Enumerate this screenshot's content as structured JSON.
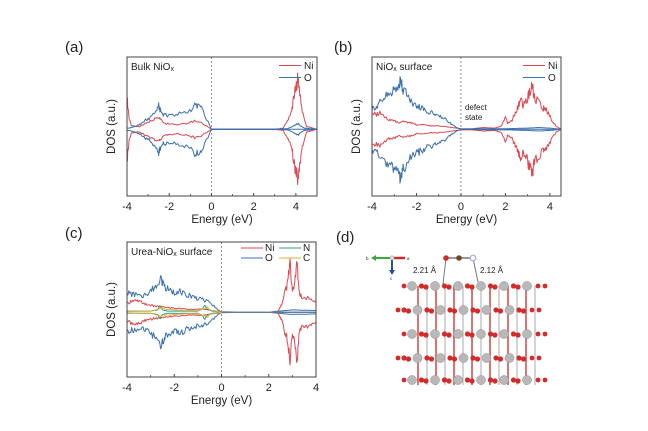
{
  "chart_data": [
    {
      "id": "a",
      "type": "line",
      "panel_label": "(a)",
      "inset_title": "Bulk NiOx",
      "inset_title_main": "Bulk NiO",
      "inset_title_sub": "x",
      "xlabel": "Energy (eV)",
      "ylabel": "DOS (a.u.)",
      "xlim": [
        -4,
        5
      ],
      "xticks": [
        -4,
        -2,
        0,
        2,
        4
      ],
      "ylim": [
        -1,
        1
      ],
      "fermi_line": 0,
      "grid": false,
      "legend": "top-right",
      "series": [
        {
          "name": "Ni",
          "color": "#d9494f",
          "x": [
            -4,
            -3.9,
            -3.8,
            -3.6,
            -3.4,
            -3.2,
            -3.0,
            -2.8,
            -2.6,
            -2.5,
            -2.4,
            -2.2,
            -2.0,
            -1.6,
            -1.2,
            -0.8,
            -0.4,
            0,
            0.5,
            1,
            2,
            3,
            3.4,
            3.6,
            3.8,
            3.9,
            4.0,
            4.1,
            4.2,
            4.3,
            4.5,
            5
          ],
          "y": [
            0.55,
            0.2,
            0.06,
            0.05,
            0.05,
            0.08,
            0.12,
            0.16,
            0.2,
            0.22,
            0.18,
            0.1,
            0.1,
            0.08,
            0.1,
            0.14,
            0.1,
            0,
            0,
            0,
            0,
            0,
            0.02,
            0.15,
            0.32,
            0.55,
            0.7,
            0.9,
            0.6,
            0.3,
            0.05,
            0
          ]
        },
        {
          "name": "O",
          "color": "#3c6fb0",
          "x": [
            -4,
            -3.9,
            -3.8,
            -3.6,
            -3.4,
            -3.2,
            -3.0,
            -2.8,
            -2.6,
            -2.5,
            -2.4,
            -2.2,
            -2.0,
            -1.6,
            -1.2,
            -0.8,
            -0.6,
            -0.4,
            0,
            1,
            2,
            3,
            3.6,
            3.8,
            4.0,
            4.1,
            4.2,
            4.4,
            5
          ],
          "y": [
            0.02,
            0.02,
            0.03,
            0.05,
            0.08,
            0.14,
            0.18,
            0.22,
            0.34,
            0.4,
            0.3,
            0.24,
            0.24,
            0.26,
            0.28,
            0.4,
            0.42,
            0.3,
            0,
            0,
            0,
            0,
            0.01,
            0.04,
            0.08,
            0.1,
            0.06,
            0.02,
            0
          ]
        }
      ]
    },
    {
      "id": "b",
      "type": "line",
      "panel_label": "(b)",
      "inset_title_main": "NiO",
      "inset_title_sub": "x",
      "inset_title_rest": " surface",
      "annotation": [
        "defect",
        "state"
      ],
      "xlabel": "Energy (eV)",
      "ylabel": "DOS (a.u.)",
      "xlim": [
        -4,
        4.5
      ],
      "xticks": [
        -4,
        -2,
        0,
        2,
        4
      ],
      "ylim": [
        -1,
        1
      ],
      "fermi_line": 0,
      "grid": false,
      "legend": "top-right",
      "series": [
        {
          "name": "Ni",
          "color": "#d9494f",
          "x": [
            -4,
            -3.8,
            -3.6,
            -3.4,
            -3.2,
            -3.0,
            -2.8,
            -2.6,
            -2.4,
            -2.2,
            -2.0,
            -1.6,
            -1.2,
            -0.8,
            -0.4,
            0,
            0.5,
            1,
            1.5,
            1.8,
            1.9,
            2.0,
            2.1,
            2.3,
            2.4,
            2.5,
            2.6,
            2.7,
            2.8,
            3.0,
            3.1,
            3.2,
            3.3,
            3.5,
            3.7,
            3.8,
            3.9,
            4.1,
            4.3,
            4.5
          ],
          "y": [
            0.28,
            0.25,
            0.3,
            0.2,
            0.16,
            0.14,
            0.12,
            0.14,
            0.12,
            0.1,
            0.08,
            0.07,
            0.06,
            0.05,
            0.03,
            0.01,
            0.01,
            0.03,
            0.02,
            0.05,
            0.12,
            0.2,
            0.1,
            0.15,
            0.25,
            0.3,
            0.45,
            0.5,
            0.4,
            0.55,
            0.65,
            0.75,
            0.55,
            0.45,
            0.35,
            0.38,
            0.3,
            0.15,
            0.05,
            0
          ]
        },
        {
          "name": "O",
          "color": "#3c6fb0",
          "x": [
            -4,
            -3.8,
            -3.6,
            -3.4,
            -3.2,
            -3.0,
            -2.8,
            -2.7,
            -2.6,
            -2.4,
            -2.2,
            -2.0,
            -1.8,
            -1.6,
            -1.4,
            -1.2,
            -1.0,
            -0.8,
            -0.6,
            -0.4,
            -0.2,
            0,
            1,
            2,
            3,
            3.5,
            4,
            4.5
          ],
          "y": [
            0.35,
            0.4,
            0.5,
            0.55,
            0.6,
            0.65,
            0.75,
            0.85,
            0.7,
            0.55,
            0.45,
            0.4,
            0.38,
            0.32,
            0.3,
            0.28,
            0.22,
            0.2,
            0.14,
            0.08,
            0.03,
            0,
            0.01,
            0.01,
            0.02,
            0.03,
            0.02,
            0
          ]
        }
      ]
    },
    {
      "id": "c",
      "type": "line",
      "panel_label": "(c)",
      "inset_title_main": "Urea-NiO",
      "inset_title_sub": "x",
      "inset_title_rest": " surface",
      "xlabel": "Energy (eV)",
      "ylabel": "DOS (a.u.)",
      "xlim": [
        -4,
        4
      ],
      "xticks": [
        -4,
        -2,
        0,
        2,
        4
      ],
      "ylim": [
        -1,
        1
      ],
      "fermi_line": 0,
      "grid": false,
      "legend": "top-right",
      "series": [
        {
          "name": "Ni",
          "color": "#d9494f",
          "x": [
            -4,
            -3.8,
            -3.6,
            -3.4,
            -3.2,
            -3.0,
            -2.8,
            -2.6,
            -2.4,
            -2.2,
            -2.0,
            -1.6,
            -1.2,
            -0.8,
            -0.4,
            0,
            1,
            2,
            2.4,
            2.5,
            2.6,
            2.7,
            2.8,
            2.9,
            3.0,
            3.1,
            3.2,
            3.3,
            3.4,
            3.6,
            3.8,
            4.0
          ],
          "y": [
            0.15,
            0.2,
            0.2,
            0.18,
            0.14,
            0.12,
            0.1,
            0.1,
            0.09,
            0.08,
            0.07,
            0.06,
            0.05,
            0.05,
            0.03,
            0.01,
            0,
            0,
            0.02,
            0.1,
            0.2,
            0.4,
            0.5,
            0.9,
            0.35,
            0.5,
            0.9,
            0.3,
            0.28,
            0.26,
            0.22,
            0.18
          ]
        },
        {
          "name": "O",
          "color": "#3c6fb0",
          "x": [
            -4,
            -3.8,
            -3.6,
            -3.4,
            -3.2,
            -3.0,
            -2.8,
            -2.6,
            -2.5,
            -2.4,
            -2.2,
            -2.0,
            -1.8,
            -1.6,
            -1.4,
            -1.2,
            -1.0,
            -0.8,
            -0.6,
            -0.4,
            -0.2,
            0,
            1,
            2,
            3,
            4
          ],
          "y": [
            0.35,
            0.32,
            0.3,
            0.28,
            0.32,
            0.38,
            0.45,
            0.6,
            0.55,
            0.45,
            0.38,
            0.35,
            0.38,
            0.32,
            0.3,
            0.28,
            0.24,
            0.22,
            0.2,
            0.14,
            0.06,
            0,
            0,
            0,
            0.04,
            0.03
          ]
        },
        {
          "name": "N",
          "color": "#2e9e8a",
          "x": [
            -4,
            -3,
            -2.7,
            -2.6,
            -2.5,
            -2.3,
            -1,
            -0.8,
            -0.7,
            -0.6,
            -0.4,
            0,
            4
          ],
          "y": [
            0.02,
            0.02,
            0.04,
            0.12,
            0.04,
            0.02,
            0.02,
            0.06,
            0.12,
            0.05,
            0.02,
            0,
            0
          ]
        },
        {
          "name": "C",
          "color": "#e0b23a",
          "x": [
            -4,
            -3,
            -2.6,
            -2.5,
            -2.4,
            -1.5,
            -1,
            -0.7,
            -0.6,
            -0.5,
            0,
            4
          ],
          "y": [
            0.01,
            0.02,
            0.06,
            0.1,
            0.05,
            0.03,
            0.03,
            0.06,
            0.09,
            0.04,
            0,
            0
          ]
        }
      ]
    }
  ],
  "structure_panel": {
    "panel_label": "(d)",
    "bond_left": "2.21 Å",
    "bond_right": "2.12 Å",
    "axis_labels": {
      "b": "b",
      "a": "a",
      "c": "c"
    },
    "colors": {
      "ni": "#b8b8b8",
      "o": "#d32a2a",
      "c": "#6b4a2a",
      "n": "#9db0d8",
      "axis_b": "#3fa63f",
      "axis_a": "#d02828",
      "axis_c": "#2a4f9c"
    }
  }
}
